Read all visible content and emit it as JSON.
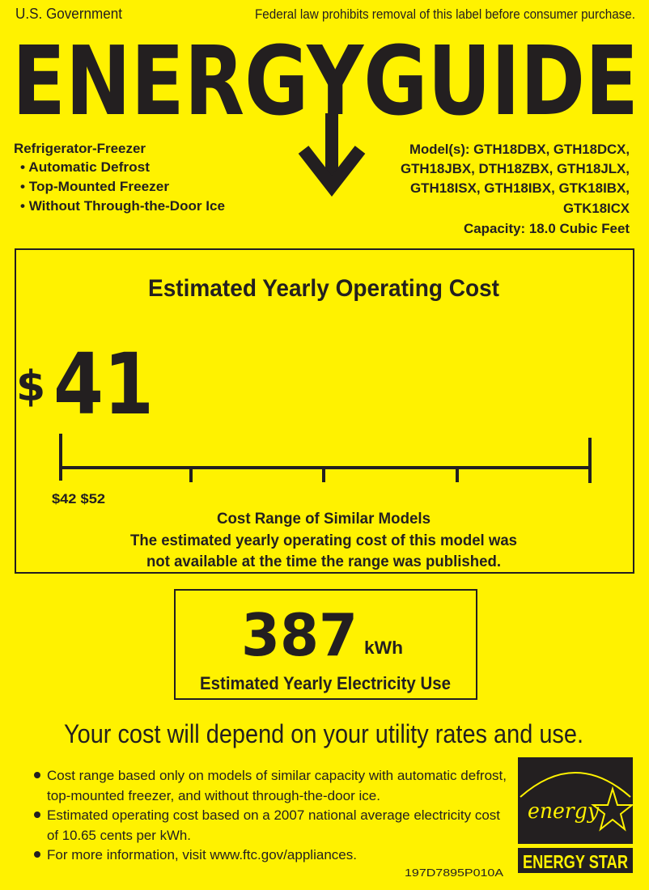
{
  "header": {
    "left": "U.S. Government",
    "right": "Federal law prohibits removal of this label before consumer purchase.",
    "logo": "ENERGYGUIDE"
  },
  "product": {
    "type": "Refrigerator-Freezer",
    "features": [
      "• Automatic Defrost",
      "• Top-Mounted Freezer",
      "• Without Through-the-Door Ice"
    ]
  },
  "models": {
    "lines": [
      "Model(s): GTH18DBX, GTH18DCX,",
      "GTH18JBX, DTH18ZBX, GTH18JLX,",
      "GTH18ISX, GTH18IBX, GTK18IBX,",
      "GTK18ICX"
    ],
    "capacity": "Capacity: 18.0 Cubic Feet"
  },
  "cost": {
    "title": "Estimated Yearly Operating Cost",
    "currency": "$",
    "value": "41",
    "range_labels": "$42 $52",
    "range_title": "Cost Range of Similar Models",
    "note_1": "The estimated yearly operating cost of this model was",
    "note_2": "not available at the time the range was published."
  },
  "electricity": {
    "value": "387",
    "unit": "kWh",
    "label": "Estimated Yearly Electricity Use"
  },
  "depend": "Your cost will depend on your utility rates and use.",
  "bullets": [
    [
      "Cost range based only on models of similar capacity with automatic defrost,",
      "top-mounted freezer, and without through-the-door ice."
    ],
    [
      "Estimated operating cost based on a 2007 national average electricity cost",
      "of 10.65 cents per kWh."
    ],
    [
      "For more information, visit www.ftc.gov/appliances."
    ]
  ],
  "code": "197D7895P010A",
  "energy_star": {
    "script": "energy",
    "label": "ENERGY STAR"
  },
  "colors": {
    "background": "#fff200",
    "ink": "#231f20"
  }
}
